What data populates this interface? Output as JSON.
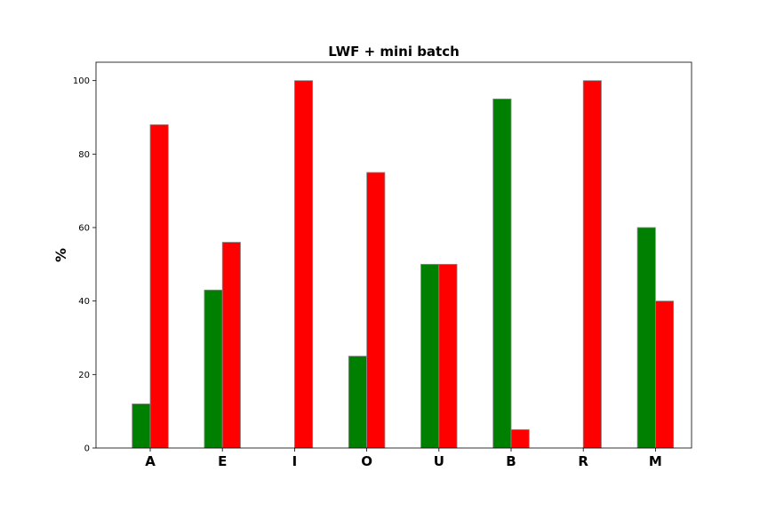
{
  "chart_data": {
    "type": "bar",
    "title": "LWF + mini batch",
    "xlabel": "",
    "ylabel": "%",
    "categories": [
      "A",
      "E",
      "I",
      "O",
      "U",
      "B",
      "R",
      "M"
    ],
    "series": [
      {
        "values": [
          12,
          43,
          0,
          25,
          50,
          95,
          0,
          60
        ],
        "color": "#008000"
      },
      {
        "values": [
          88,
          56,
          100,
          75,
          50,
          5,
          100,
          40
        ],
        "color": "#ff0000"
      }
    ],
    "ylim": [
      0,
      105
    ],
    "yticks": [
      0,
      20,
      40,
      60,
      80,
      100
    ],
    "grid": false,
    "legend": "none"
  }
}
